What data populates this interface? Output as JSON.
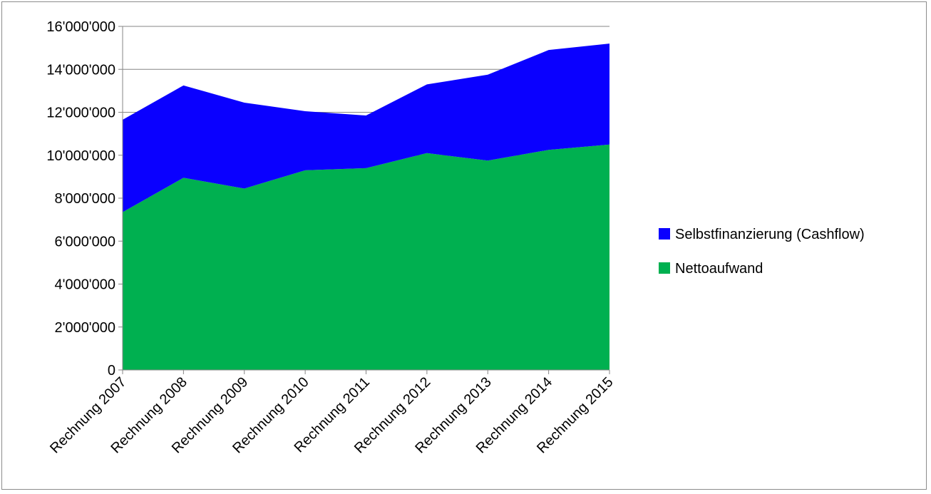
{
  "chart_data": {
    "type": "area",
    "stacked": true,
    "categories": [
      "Rechnung 2007",
      "Rechnung 2008",
      "Rechnung 2009",
      "Rechnung 2010",
      "Rechnung 2011",
      "Rechnung 2012",
      "Rechnung 2013",
      "Rechnung 2014",
      "Rechnung 2015"
    ],
    "series": [
      {
        "name": "Nettoaufwand",
        "color": "#00b050",
        "values": [
          7350000,
          8950000,
          8450000,
          9300000,
          9400000,
          10100000,
          9750000,
          10250000,
          10500000
        ]
      },
      {
        "name": "Selbstfinanzierung (Cashflow)",
        "color": "#0a00ff",
        "values": [
          4300000,
          4300000,
          4000000,
          2750000,
          2450000,
          3200000,
          4000000,
          4650000,
          4700000
        ]
      }
    ],
    "ylim": [
      0,
      16000000
    ],
    "yticks": [
      0,
      2000000,
      4000000,
      6000000,
      8000000,
      10000000,
      12000000,
      14000000,
      16000000
    ],
    "ytick_labels": [
      "0",
      "2'000'000",
      "4'000'000",
      "6'000'000",
      "8'000'000",
      "10'000'000",
      "12'000'000",
      "14'000'000",
      "16'000'000"
    ],
    "grid": true,
    "legend_position": "right",
    "legend_order": [
      "Selbstfinanzierung (Cashflow)",
      "Nettoaufwand"
    ]
  }
}
